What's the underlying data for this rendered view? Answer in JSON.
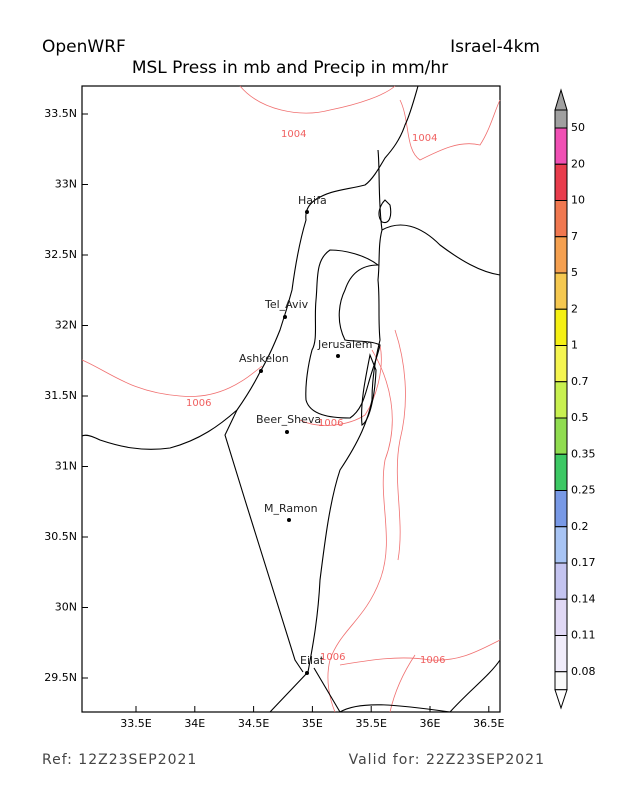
{
  "header": {
    "model": "OpenWRF",
    "domain": "Israel-4km",
    "field": "MSL Press in mb and Precip in mm/hr"
  },
  "axes": {
    "xticks": [
      "33.5E",
      "34E",
      "34.5E",
      "35E",
      "35.5E",
      "36E",
      "36.5E"
    ],
    "yticks": [
      "33.5N",
      "33N",
      "32.5N",
      "32N",
      "31.5N",
      "31N",
      "30.5N",
      "30N",
      "29.5N"
    ]
  },
  "cities": [
    "Haifa",
    "Tel_Aviv",
    "Jerusalem",
    "Ashkelon",
    "Beer_Sheva",
    "M_Ramon",
    "Eilat"
  ],
  "contour_labels": [
    "1004",
    "1004",
    "1006",
    "1006",
    "1006",
    "1006"
  ],
  "colorbar": {
    "labels": [
      "50",
      "20",
      "10",
      "7",
      "5",
      "2",
      "1",
      "0.7",
      "0.5",
      "0.35",
      "0.25",
      "0.2",
      "0.17",
      "0.14",
      "0.11",
      "0.08"
    ]
  },
  "footer": {
    "ref": "Ref: 12Z23SEP2021",
    "valid": "Valid for: 22Z23SEP2021"
  }
}
